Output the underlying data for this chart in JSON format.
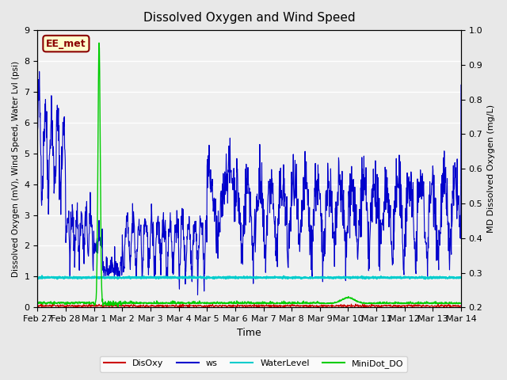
{
  "title": "Dissolved Oxygen and Wind Speed",
  "xlabel": "Time",
  "ylabel_left": "Dissolved Oxygen (mV), Wind Speed, Water Lvl (psi)",
  "ylabel_right": "MD Dissolved Oxygen (mg/L)",
  "ylim_left": [
    0.0,
    9.0
  ],
  "ylim_right": [
    0.2,
    1.0
  ],
  "x_tick_labels": [
    "Feb 27",
    "Feb 28",
    "Mar 1",
    "Mar 2",
    "Mar 3",
    "Mar 4",
    "Mar 5",
    "Mar 6",
    "Mar 7",
    "Mar 8",
    "Mar 9",
    "Mar 10",
    "Mar 11",
    "Mar 12",
    "Mar 13",
    "Mar 14"
  ],
  "x_tick_positions": [
    0,
    1,
    2,
    3,
    4,
    5,
    6,
    7,
    8,
    9,
    10,
    11,
    12,
    13,
    14,
    15
  ],
  "annotation_text": "EE_met",
  "annotation_color": "#8B0000",
  "annotation_bg": "#FFFFCC",
  "annotation_border": "#8B0000",
  "disoxy_color": "#CC0000",
  "ws_color": "#0000CC",
  "waterlevel_color": "#00CCCC",
  "minidot_color": "#00CC00",
  "bg_color": "#E8E8E8",
  "plot_bg": "#F0F0F0",
  "grid_color": "#FFFFFF",
  "legend_labels": [
    "DisOxy",
    "ws",
    "WaterLevel",
    "MiniDot_DO"
  ]
}
